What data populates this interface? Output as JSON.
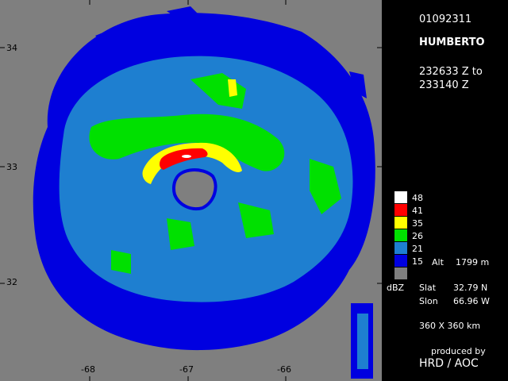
{
  "map": {
    "background_color": "#7f7f7f",
    "lat_labels": [
      "34",
      "33",
      "32"
    ],
    "lon_labels": [
      "-68",
      "-67",
      "-66"
    ],
    "reflectivity_colors": {
      "dbz_48": "#ffffff",
      "dbz_41": "#ff0000",
      "dbz_35": "#ffff00",
      "dbz_26": "#00e000",
      "dbz_21": "#1e7fd0",
      "dbz_15": "#0000e0",
      "no_echo": "#7f7f7f"
    }
  },
  "panel": {
    "date_code": "01092311",
    "storm_name": "HUMBERTO",
    "time_start": "232633 Z to",
    "time_end": "233140 Z",
    "legend": [
      {
        "value": "48",
        "color": "#ffffff"
      },
      {
        "value": "41",
        "color": "#ff0000"
      },
      {
        "value": "35",
        "color": "#ffff00"
      },
      {
        "value": "26",
        "color": "#00e000"
      },
      {
        "value": "21",
        "color": "#1e7fd0"
      },
      {
        "value": "15",
        "color": "#0000e0"
      },
      {
        "value": "",
        "color": "#7f7f7f"
      }
    ],
    "alt_label": "Alt",
    "alt_value": "1799 m",
    "unit_label": "dBZ",
    "slat_label": "Slat",
    "slat_value": "32.79 N",
    "slon_label": "Slon",
    "slon_value": "66.96 W",
    "domain_size": "360 X 360 km",
    "credit_line1": "produced by",
    "credit_line2": "HRD / AOC"
  }
}
